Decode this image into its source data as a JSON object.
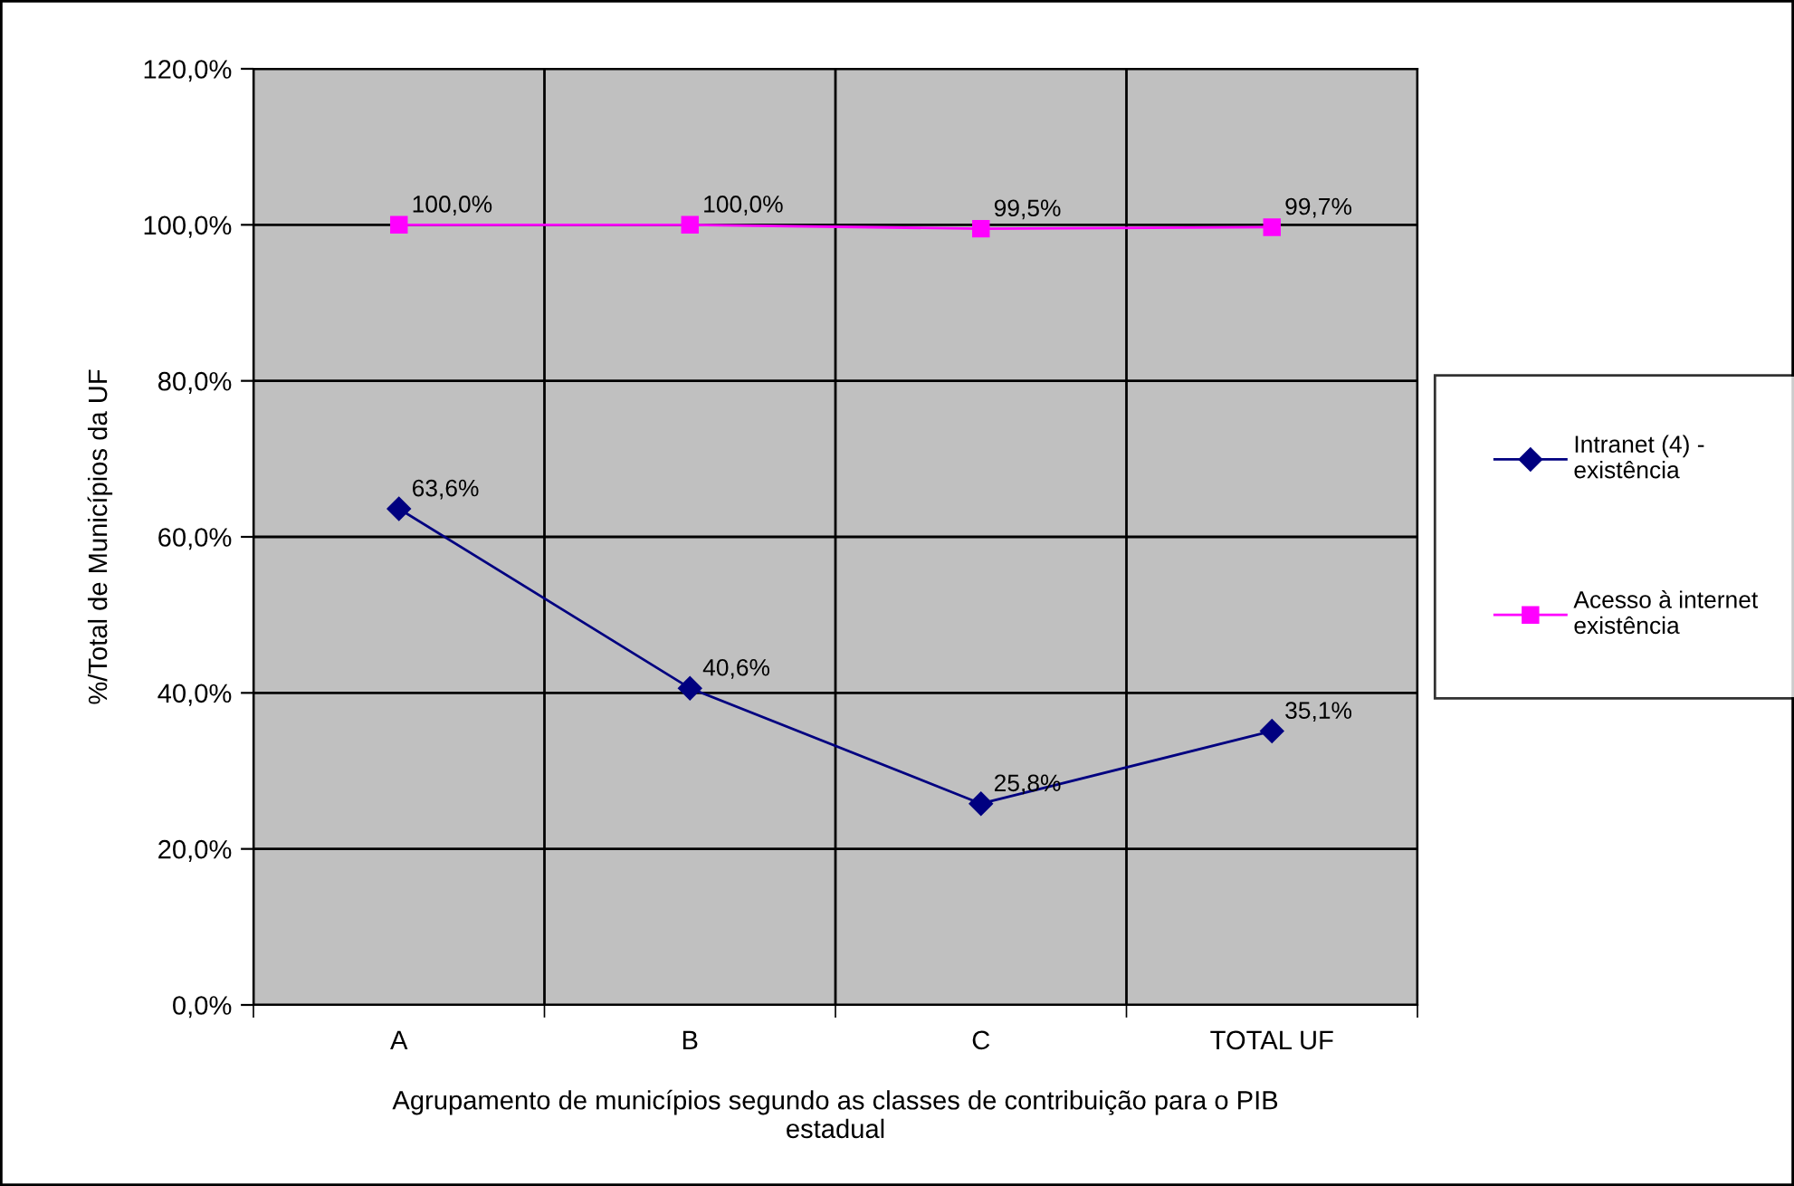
{
  "chart_data": {
    "type": "line",
    "ylabel": "%/Total de Municípios da UF",
    "xlabel": "Agrupamento de municípios segundo as classes de contribuição para o PIB estadual",
    "categories": [
      "A",
      "B",
      "C",
      "TOTAL UF"
    ],
    "series": [
      {
        "name": "Intranet (4) - existência",
        "color": "#000080",
        "marker": "diamond",
        "values": [
          63.6,
          40.6,
          25.8,
          35.1
        ],
        "value_labels": [
          "63,6%",
          "40,6%",
          "25,8%",
          "35,1%"
        ]
      },
      {
        "name": "Acesso à internet existência",
        "color": "#ff00ff",
        "marker": "square",
        "values": [
          100.0,
          100.0,
          99.5,
          99.7
        ],
        "value_labels": [
          "100,0%",
          "100,0%",
          "99,5%",
          "99,7%"
        ]
      }
    ],
    "ylim": [
      0,
      120
    ],
    "yticks": [
      {
        "value": 0,
        "label": "0,0%"
      },
      {
        "value": 20,
        "label": "20,0%"
      },
      {
        "value": 40,
        "label": "40,0%"
      },
      {
        "value": 60,
        "label": "60,0%"
      },
      {
        "value": 80,
        "label": "80,0%"
      },
      {
        "value": 100,
        "label": "100,0%"
      },
      {
        "value": 120,
        "label": "120,0%"
      }
    ],
    "grid": true,
    "legend": "right"
  }
}
